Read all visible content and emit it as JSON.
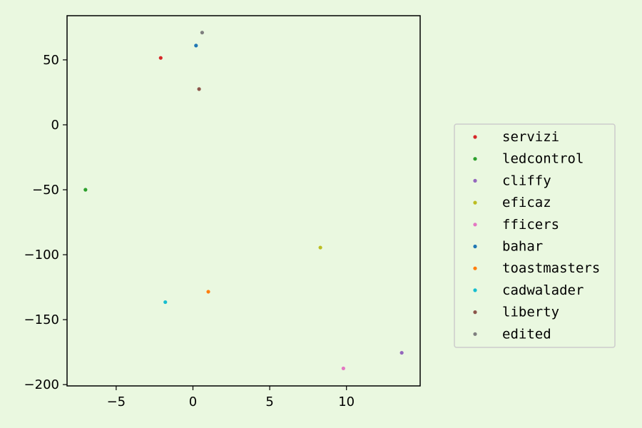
{
  "chart_data": {
    "type": "scatter",
    "title": "",
    "xlabel": "",
    "ylabel": "",
    "xlim": [
      -8.2,
      14.8
    ],
    "ylim": [
      -201,
      84
    ],
    "xticks": [
      -5,
      0,
      5,
      10
    ],
    "yticks": [
      50,
      0,
      -50,
      -100,
      -150,
      -200
    ],
    "grid": false,
    "legend_position": "right",
    "series": [
      {
        "name": "servizi",
        "color": "#d62728",
        "points": [
          [
            -2.1,
            51.5
          ]
        ]
      },
      {
        "name": "ledcontrol",
        "color": "#2ca02c",
        "points": [
          [
            -7.0,
            -50.0
          ]
        ]
      },
      {
        "name": "cliffy",
        "color": "#9467bd",
        "points": [
          [
            13.6,
            -175.5
          ]
        ]
      },
      {
        "name": "eficaz",
        "color": "#bcbd22",
        "points": [
          [
            8.3,
            -94.5
          ]
        ]
      },
      {
        "name": "fficers",
        "color": "#e377c2",
        "points": [
          [
            9.8,
            -187.5
          ]
        ]
      },
      {
        "name": "bahar",
        "color": "#1f77b4",
        "points": [
          [
            0.2,
            61.0
          ]
        ]
      },
      {
        "name": "toastmasters",
        "color": "#ff7f0e",
        "points": [
          [
            1.0,
            -128.5
          ]
        ]
      },
      {
        "name": "cadwalader",
        "color": "#17becf",
        "points": [
          [
            -1.8,
            -136.5
          ]
        ]
      },
      {
        "name": "liberty",
        "color": "#8c564b",
        "points": [
          [
            0.4,
            27.5
          ]
        ]
      },
      {
        "name": "edited",
        "color": "#7f7f7f",
        "points": [
          [
            0.6,
            71.0
          ]
        ]
      }
    ]
  }
}
